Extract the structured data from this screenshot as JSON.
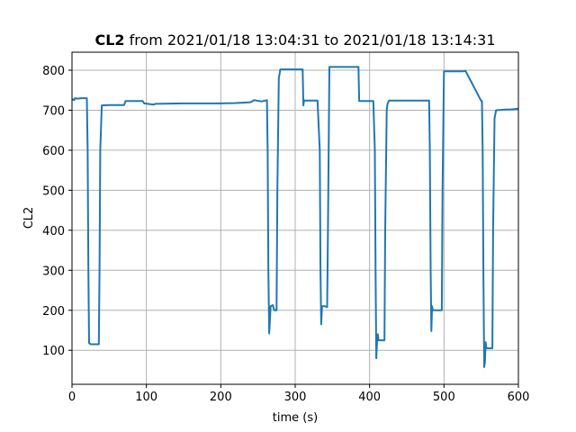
{
  "chart_data": {
    "type": "line",
    "title_bold": "CL2",
    "title_rest": " from 2021/01/18 13:04:31 to 2021/01/18 13:14:31",
    "xlabel": "time (s)",
    "ylabel": "CL2",
    "xlim": [
      0,
      600
    ],
    "ylim": [
      15,
      845
    ],
    "xticks": [
      0,
      100,
      200,
      300,
      400,
      500,
      600
    ],
    "yticks": [
      100,
      200,
      300,
      400,
      500,
      600,
      700,
      800
    ],
    "grid": true,
    "line_color": "#1f77b4",
    "series": [
      {
        "x": [
          0,
          3,
          4,
          8,
          12,
          20,
          21,
          22,
          23,
          25,
          36,
          37,
          38,
          40,
          50,
          55,
          70,
          72,
          95,
          97,
          110,
          112,
          150,
          200,
          220,
          240,
          245,
          255,
          262,
          263,
          264,
          265,
          266,
          267,
          270,
          271,
          272,
          275,
          276,
          278,
          280,
          300,
          310,
          311,
          312,
          313,
          330,
          333,
          334,
          335,
          336,
          340,
          343,
          344,
          346,
          370,
          385,
          386,
          388,
          405,
          407,
          408,
          409,
          410,
          411,
          412,
          413,
          420,
          421,
          423,
          424,
          426,
          440,
          480,
          481,
          482,
          483,
          484,
          485,
          486,
          497,
          498,
          500,
          525,
          528,
          529,
          550,
          551,
          552,
          553,
          554,
          555,
          556,
          557,
          558,
          565,
          566,
          568,
          570,
          585,
          590,
          600
        ],
        "y": [
          728,
          725,
          730,
          729,
          730,
          730,
          600,
          300,
          118,
          115,
          115,
          300,
          600,
          712,
          713,
          713,
          713,
          723,
          723,
          717,
          714,
          716,
          717,
          717,
          718,
          720,
          725,
          722,
          725,
          600,
          300,
          142,
          175,
          210,
          213,
          205,
          200,
          200,
          500,
          780,
          802,
          802,
          802,
          712,
          725,
          724,
          724,
          600,
          300,
          165,
          210,
          210,
          208,
          400,
          808,
          808,
          808,
          723,
          723,
          723,
          600,
          300,
          80,
          120,
          140,
          125,
          125,
          125,
          400,
          700,
          715,
          724,
          724,
          724,
          600,
          300,
          148,
          210,
          200,
          200,
          200,
          500,
          797,
          797,
          798,
          798,
          723,
          723,
          600,
          300,
          58,
          70,
          120,
          105,
          105,
          105,
          400,
          680,
          700,
          702,
          702,
          704
        ]
      }
    ]
  }
}
